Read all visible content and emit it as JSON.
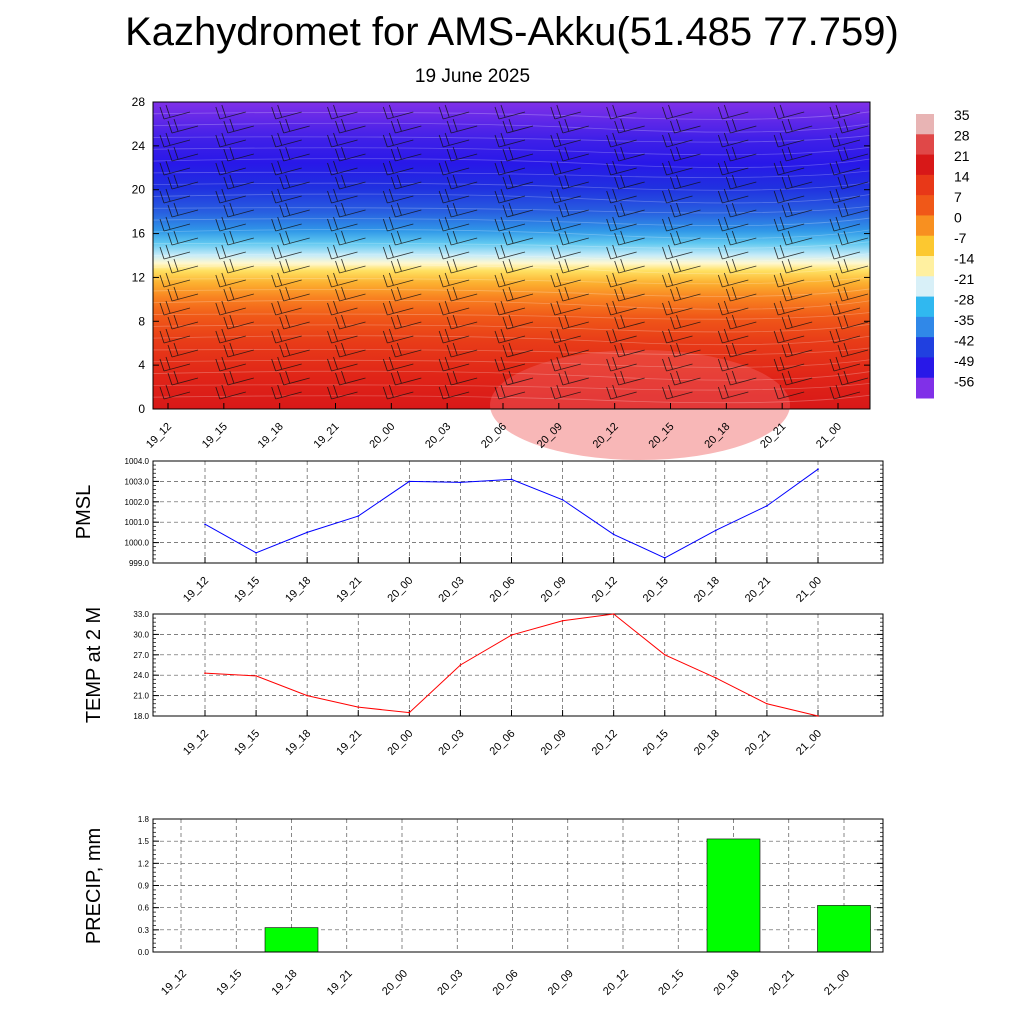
{
  "header": {
    "title": "Kazhydromet for AMS-Akku(51.485 77.759)",
    "subtitle": "19 June 2025"
  },
  "chart_data": [
    {
      "type": "heatmap",
      "name": "temperature-cross-section",
      "x_categories": [
        "19_12",
        "19_15",
        "19_18",
        "19_21",
        "20_00",
        "20_03",
        "20_06",
        "20_09",
        "20_12",
        "20_15",
        "20_18",
        "20_21",
        "21_00"
      ],
      "y_ticks": [
        0,
        4,
        8,
        12,
        16,
        20,
        24,
        28
      ],
      "ylim": [
        0,
        28
      ],
      "colorbar_labels": [
        "35",
        "28",
        "21",
        "14",
        "7",
        "0",
        "-7",
        "-14",
        "-21",
        "-28",
        "-35",
        "-42",
        "-49",
        "-56"
      ],
      "colorbar_colors": [
        "#e8b4b4",
        "#e04848",
        "#d81818",
        "#e83818",
        "#f05818",
        "#f89020",
        "#fcc830",
        "#fff0a0",
        "#d8f0f8",
        "#30b8f0",
        "#3088e8",
        "#2040e0",
        "#2818e8",
        "#8030e8"
      ],
      "freezing_level_approx": 13,
      "wind_barbs": true
    },
    {
      "type": "line",
      "name": "PMSL",
      "ylabel": "PMSL",
      "categories": [
        "19_12",
        "19_15",
        "19_18",
        "19_21",
        "20_00",
        "20_03",
        "20_06",
        "20_09",
        "20_12",
        "20_15",
        "20_18",
        "20_21",
        "21_00"
      ],
      "values": [
        1000.9,
        999.5,
        1000.5,
        1001.3,
        1003.0,
        1002.95,
        1003.1,
        1002.1,
        1000.4,
        999.25,
        1000.6,
        1001.8,
        1003.6
      ],
      "ylim": [
        999.0,
        1004.0
      ],
      "y_ticks": [
        "999.0",
        "1000.0",
        "1001.0",
        "1002.0",
        "1003.0",
        "1004.0"
      ],
      "color": "#0000ff",
      "grid": true
    },
    {
      "type": "line",
      "name": "TEMP",
      "ylabel": "TEMP at 2 M",
      "categories": [
        "19_12",
        "19_15",
        "19_18",
        "19_21",
        "20_00",
        "20_03",
        "20_06",
        "20_09",
        "20_12",
        "20_15",
        "20_18",
        "20_21",
        "21_00"
      ],
      "values": [
        24.3,
        23.9,
        21.0,
        19.3,
        18.5,
        25.5,
        29.9,
        32.0,
        33.0,
        27.0,
        23.6,
        19.8,
        18.0
      ],
      "ylim": [
        18.0,
        33.0
      ],
      "y_ticks": [
        "18.0",
        "21.0",
        "24.0",
        "27.0",
        "30.0",
        "33.0"
      ],
      "color": "#ff0000",
      "grid": true
    },
    {
      "type": "bar",
      "name": "PRECIP",
      "ylabel": "PRECIP, mm",
      "categories": [
        "19_12",
        "19_15",
        "19_18",
        "19_21",
        "20_00",
        "20_03",
        "20_06",
        "20_09",
        "20_12",
        "20_15",
        "20_18",
        "20_21",
        "21_00"
      ],
      "values": [
        0,
        0,
        0.33,
        0,
        0,
        0,
        0,
        0,
        0,
        0,
        1.53,
        0,
        0.63
      ],
      "ylim": [
        0,
        1.8
      ],
      "y_ticks": [
        "0.0",
        "0.3",
        "0.6",
        "0.9",
        "1.2",
        "1.5",
        "1.8"
      ],
      "color": "#00ff00",
      "grid": true
    }
  ]
}
